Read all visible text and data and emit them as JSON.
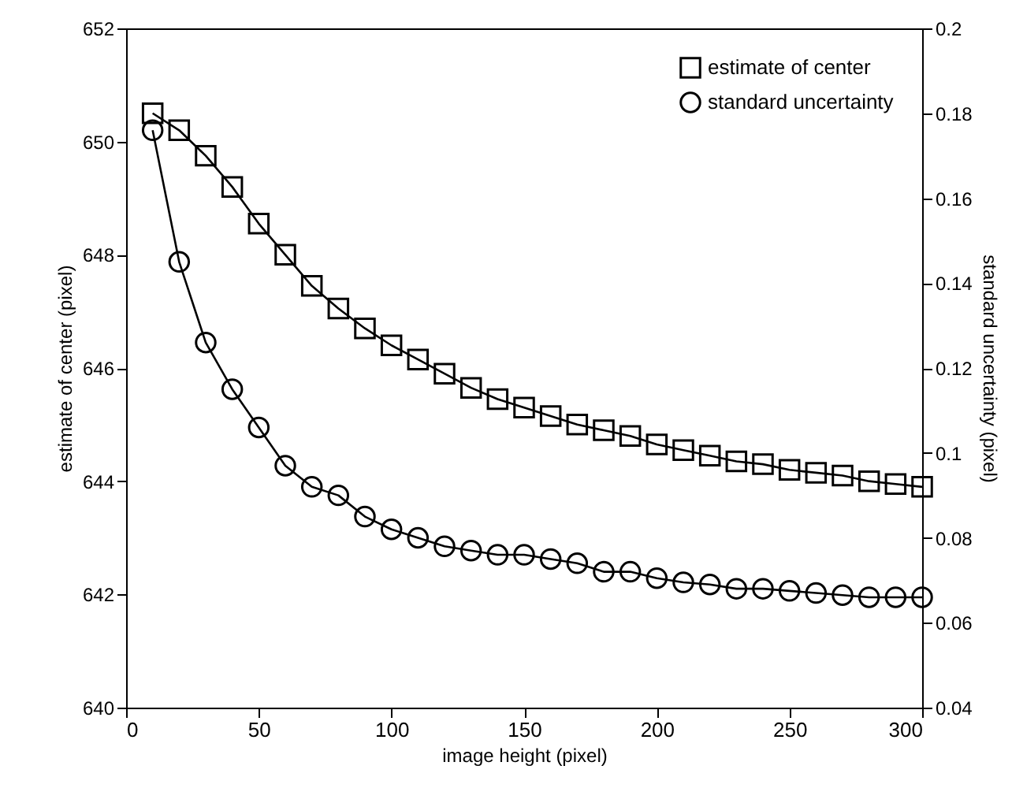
{
  "chart_data": {
    "type": "line",
    "xlabel": "image height (pixel)",
    "ylabel": "estimate of center (pixel)",
    "y2label": "standard uncertainty (pixel)",
    "x": [
      10,
      20,
      30,
      40,
      50,
      60,
      70,
      80,
      90,
      100,
      110,
      120,
      130,
      140,
      150,
      160,
      170,
      180,
      190,
      200,
      210,
      220,
      230,
      240,
      250,
      260,
      270,
      280,
      290,
      300
    ],
    "series": [
      {
        "name": "estimate of center",
        "color": "#000000",
        "marker": "square",
        "values": [
          650.5,
          650.2,
          649.75,
          649.2,
          648.55,
          648.0,
          647.45,
          647.05,
          646.7,
          646.4,
          646.15,
          645.9,
          645.65,
          645.45,
          645.3,
          645.15,
          645.0,
          644.9,
          644.8,
          644.65,
          644.55,
          644.45,
          644.35,
          644.3,
          644.2,
          644.15,
          644.1,
          644.0,
          643.95,
          643.9
        ]
      },
      {
        "name": "standard uncertainty",
        "color": "#000000",
        "marker": "circle",
        "axis": "y2",
        "values": [
          0.176,
          0.145,
          0.126,
          0.115,
          0.106,
          0.097,
          0.092,
          0.09,
          0.085,
          0.082,
          0.08,
          0.078,
          0.077,
          0.076,
          0.076,
          0.075,
          0.074,
          0.072,
          0.072,
          0.0705,
          0.0695,
          0.069,
          0.068,
          0.068,
          0.0675,
          0.067,
          0.0665,
          0.066,
          0.066,
          0.066
        ]
      }
    ],
    "xlim": [
      0,
      300
    ],
    "xticks": [
      0,
      50,
      100,
      150,
      200,
      250,
      300
    ],
    "ylim": [
      640,
      652
    ],
    "yticks": [
      640,
      642,
      644,
      646,
      648,
      650,
      652
    ],
    "y2lim": [
      0.04,
      0.2
    ],
    "y2ticks": [
      0.04,
      0.06,
      0.08,
      0.1,
      0.12,
      0.14,
      0.16,
      0.18,
      0.2
    ],
    "grid": false,
    "legend": "top right",
    "line_style": "solid"
  }
}
